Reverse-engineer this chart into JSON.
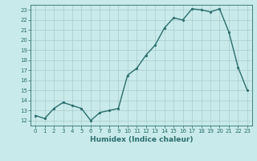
{
  "x": [
    0,
    1,
    2,
    3,
    4,
    5,
    6,
    7,
    8,
    9,
    10,
    11,
    12,
    13,
    14,
    15,
    16,
    17,
    18,
    19,
    20,
    21,
    22,
    23
  ],
  "y": [
    12.5,
    12.2,
    13.2,
    13.8,
    13.5,
    13.2,
    12.0,
    12.8,
    13.0,
    13.2,
    16.5,
    17.2,
    18.5,
    19.5,
    21.2,
    22.2,
    22.0,
    23.1,
    23.0,
    22.8,
    23.1,
    20.8,
    17.3,
    15.0
  ],
  "line_color": "#2d6e6e",
  "marker": "o",
  "marker_size": 2,
  "bg_color": "#c8eaea",
  "grid_color": "#a8cccc",
  "xlabel": "Humidex (Indice chaleur)",
  "ylim_min": 11.5,
  "ylim_max": 23.5,
  "xlim_min": -0.5,
  "xlim_max": 23.5,
  "yticks": [
    12,
    13,
    14,
    15,
    16,
    17,
    18,
    19,
    20,
    21,
    22,
    23
  ],
  "xticks": [
    0,
    1,
    2,
    3,
    4,
    5,
    6,
    7,
    8,
    9,
    10,
    11,
    12,
    13,
    14,
    15,
    16,
    17,
    18,
    19,
    20,
    21,
    22,
    23
  ],
  "tick_fontsize": 5,
  "xlabel_fontsize": 6.5,
  "line_width": 1.0
}
